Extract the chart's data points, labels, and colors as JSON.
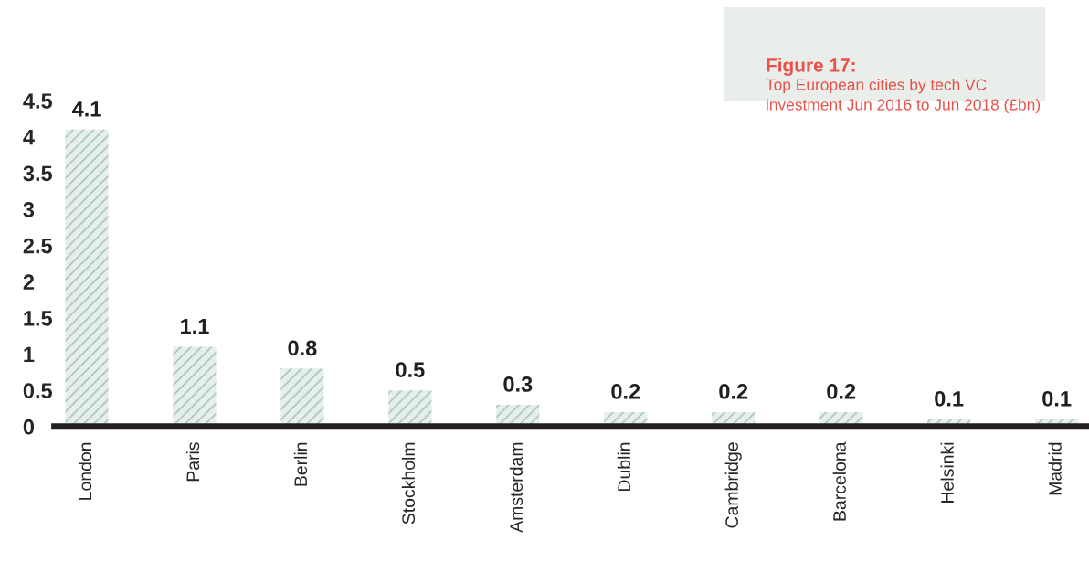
{
  "chart_data": {
    "type": "bar",
    "title": "Figure 17:",
    "subtitle": "Top European cities by tech VC investment Jun 2016 to Jun 2018 (£bn)",
    "categories": [
      "London",
      "Paris",
      "Berlin",
      "Stockholm",
      "Amsterdam",
      "Dublin",
      "Cambridge",
      "Barcelona",
      "Helsinki",
      "Madrid"
    ],
    "values": [
      4.1,
      1.1,
      0.8,
      0.5,
      0.3,
      0.2,
      0.2,
      0.2,
      0.1,
      0.1
    ],
    "color": "#e6efea",
    "ylim": [
      0,
      4.5
    ],
    "yticks": [
      0,
      0.5,
      1,
      1.5,
      2,
      2.5,
      3,
      3.5,
      4,
      4.5
    ],
    "data_labels": true,
    "grid": false,
    "legend": false
  }
}
